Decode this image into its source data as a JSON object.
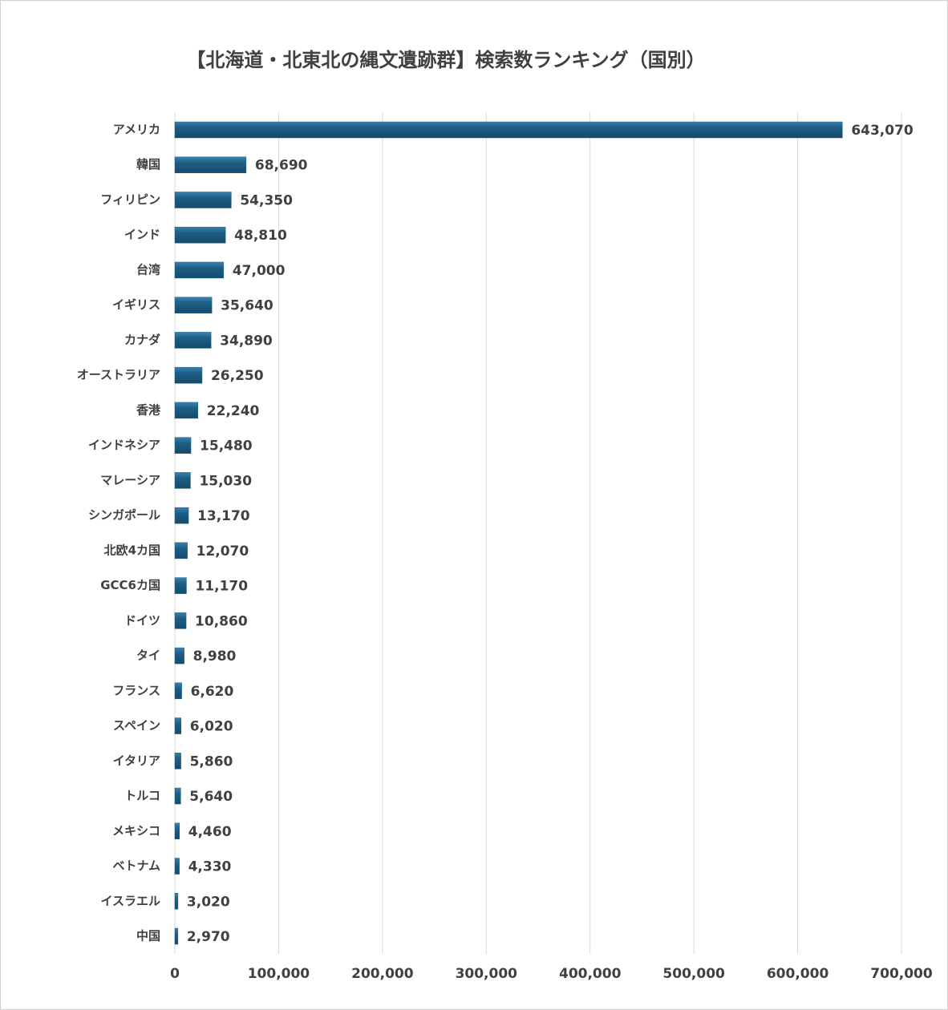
{
  "chart_data": {
    "type": "hbar",
    "title": "【北海道・北東北の縄文遺跡群】検索数ランキング（国別）",
    "categories": [
      "アメリカ",
      "韓国",
      "フィリピン",
      "インド",
      "台湾",
      "イギリス",
      "カナダ",
      "オーストラリア",
      "香港",
      "インドネシア",
      "マレーシア",
      "シンガポール",
      "北欧4カ国",
      "GCC6カ国",
      "ドイツ",
      "タイ",
      "フランス",
      "スペイン",
      "イタリア",
      "トルコ",
      "メキシコ",
      "ベトナム",
      "イスラエル",
      "中国"
    ],
    "values": [
      643070,
      68690,
      54350,
      48810,
      47000,
      35640,
      34890,
      26250,
      22240,
      15480,
      15030,
      13170,
      12070,
      11170,
      10860,
      8980,
      6620,
      6020,
      5860,
      5640,
      4460,
      4330,
      3020,
      2970
    ],
    "value_labels": [
      "643,070",
      "68,690",
      "54,350",
      "48,810",
      "47,000",
      "35,640",
      "34,890",
      "26,250",
      "22,240",
      "15,480",
      "15,030",
      "13,170",
      "12,070",
      "11,170",
      "10,860",
      "8,980",
      "6,620",
      "6,020",
      "5,860",
      "5,640",
      "4,460",
      "4,330",
      "3,020",
      "2,970"
    ],
    "color": "#1d5f86",
    "xlim": [
      0,
      700000
    ],
    "xticks": [
      0,
      {
        "value": 100000,
        "label": "100,000"
      },
      {
        "value": 200000,
        "label": "200,000"
      },
      {
        "value": 300000,
        "label": "300,000"
      },
      {
        "value": 400000,
        "label": "400,000"
      },
      {
        "value": 500000,
        "label": "500,000"
      },
      {
        "value": 600000,
        "label": "600,000"
      },
      {
        "value": 700000,
        "label": "700,000"
      }
    ],
    "grid": true
  }
}
